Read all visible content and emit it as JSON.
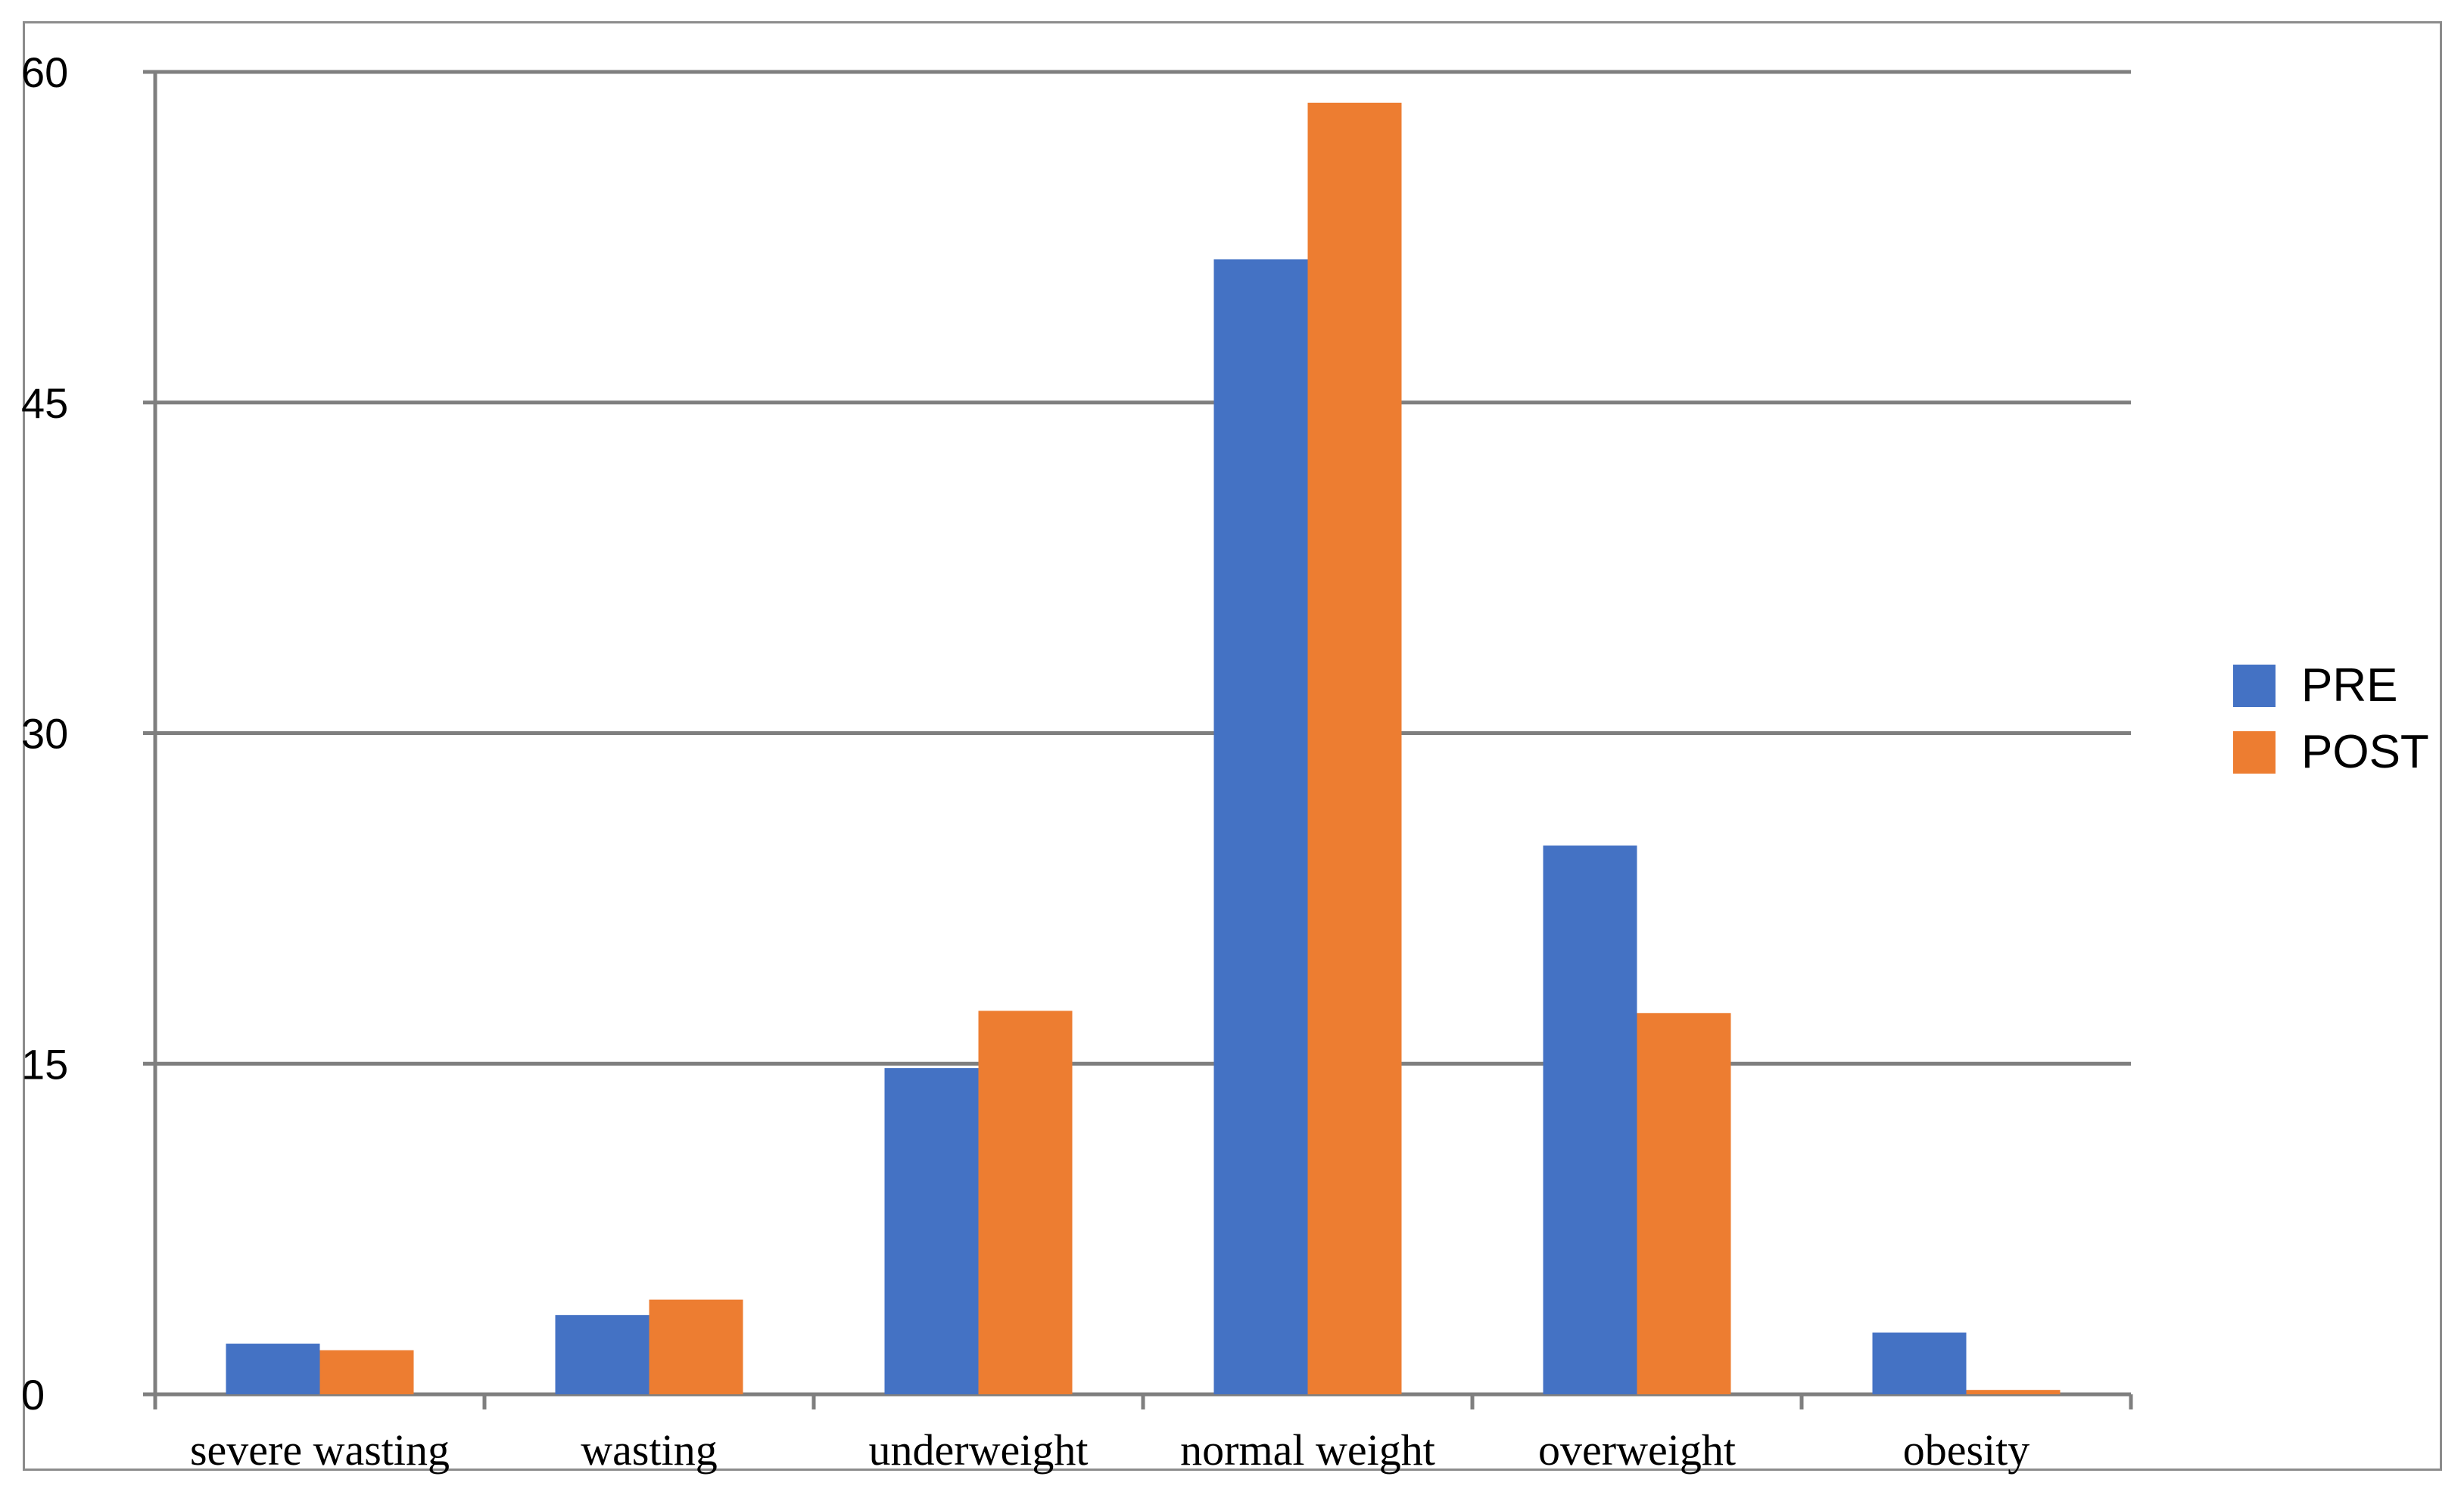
{
  "chart_data": {
    "type": "bar",
    "title": "",
    "xlabel": "",
    "ylabel": "",
    "ylim": [
      0,
      60
    ],
    "yticks": [
      0,
      15,
      30,
      45,
      60
    ],
    "grid": true,
    "legend_position": "right",
    "categories": [
      "severe wasting",
      "wasting",
      "underweight",
      "normal weight",
      "overweight",
      "obesity"
    ],
    "series": [
      {
        "name": "PRE",
        "color": "#4472c4",
        "values": [
          2.3,
          3.6,
          14.8,
          51.5,
          24.9,
          2.8
        ]
      },
      {
        "name": "POST",
        "color": "#ed7d31",
        "values": [
          2.0,
          4.3,
          17.4,
          58.6,
          17.3,
          0.2
        ]
      }
    ]
  }
}
